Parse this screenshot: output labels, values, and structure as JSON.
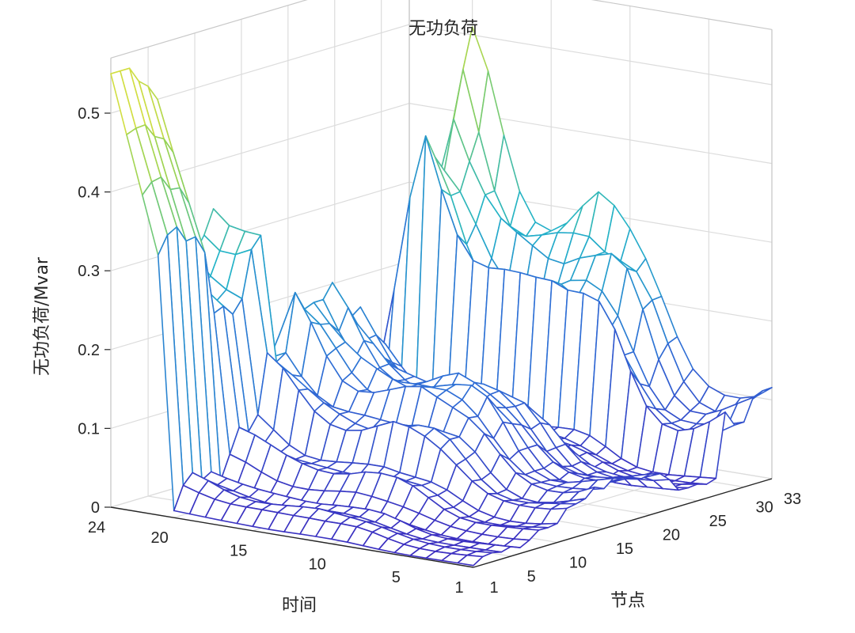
{
  "chart_data": {
    "type": "surface-mesh-3d",
    "title": "无功负荷",
    "xlabel": "节点",
    "ylabel": "时间",
    "zlabel": "无功负荷/Mvar",
    "xlim": [
      1,
      33
    ],
    "ylim": [
      1,
      24
    ],
    "zlim": [
      0,
      0.5
    ],
    "x_ticks": [
      "1",
      "5",
      "10",
      "15",
      "20",
      "25",
      "30",
      "33"
    ],
    "y_ticks": [
      "1",
      "5",
      "10",
      "15",
      "20",
      "24"
    ],
    "z_ticks": [
      "0",
      "0.1",
      "0.2",
      "0.3",
      "0.4",
      "0.5"
    ],
    "grid": true,
    "colormap": [
      "#3b2bbf",
      "#2f6fd6",
      "#22b3c8",
      "#8fd15a",
      "#e8e23a"
    ],
    "peak_profile_by_node": [
      0.01,
      0.04,
      0.05,
      0.04,
      0.05,
      0.03,
      0.06,
      0.1,
      0.09,
      0.1,
      0.18,
      0.18,
      0.18,
      0.24,
      0.23,
      0.25,
      0.23,
      0.24,
      0.22,
      0.21,
      0.2,
      0.17,
      0.09,
      0.08,
      0.09,
      0.08,
      0.09,
      0.41,
      0.36,
      0.37,
      0.45,
      0.47,
      0.52
    ],
    "tail_profile_by_node": [
      0.55,
      0.55,
      0.55,
      0.53,
      0.52,
      0.5,
      0.33,
      0.3,
      0.28,
      0.29,
      0.31,
      0.34,
      0.05,
      0.02,
      0.02,
      0.03,
      0.02,
      0.02,
      0.02,
      0.02,
      0.02,
      0.02,
      0.02,
      0.02,
      0.02,
      0.02,
      0.02,
      0.02,
      0.02,
      0.02,
      0.02,
      0.02,
      0.02
    ],
    "daily_shape_by_hour": [
      0.25,
      0.22,
      0.2,
      0.19,
      0.2,
      0.24,
      0.33,
      0.45,
      0.55,
      0.6,
      0.62,
      0.63,
      0.6,
      0.58,
      0.58,
      0.6,
      0.65,
      0.75,
      0.88,
      1.0,
      0.97,
      0.85,
      0.65,
      0.45
    ]
  }
}
